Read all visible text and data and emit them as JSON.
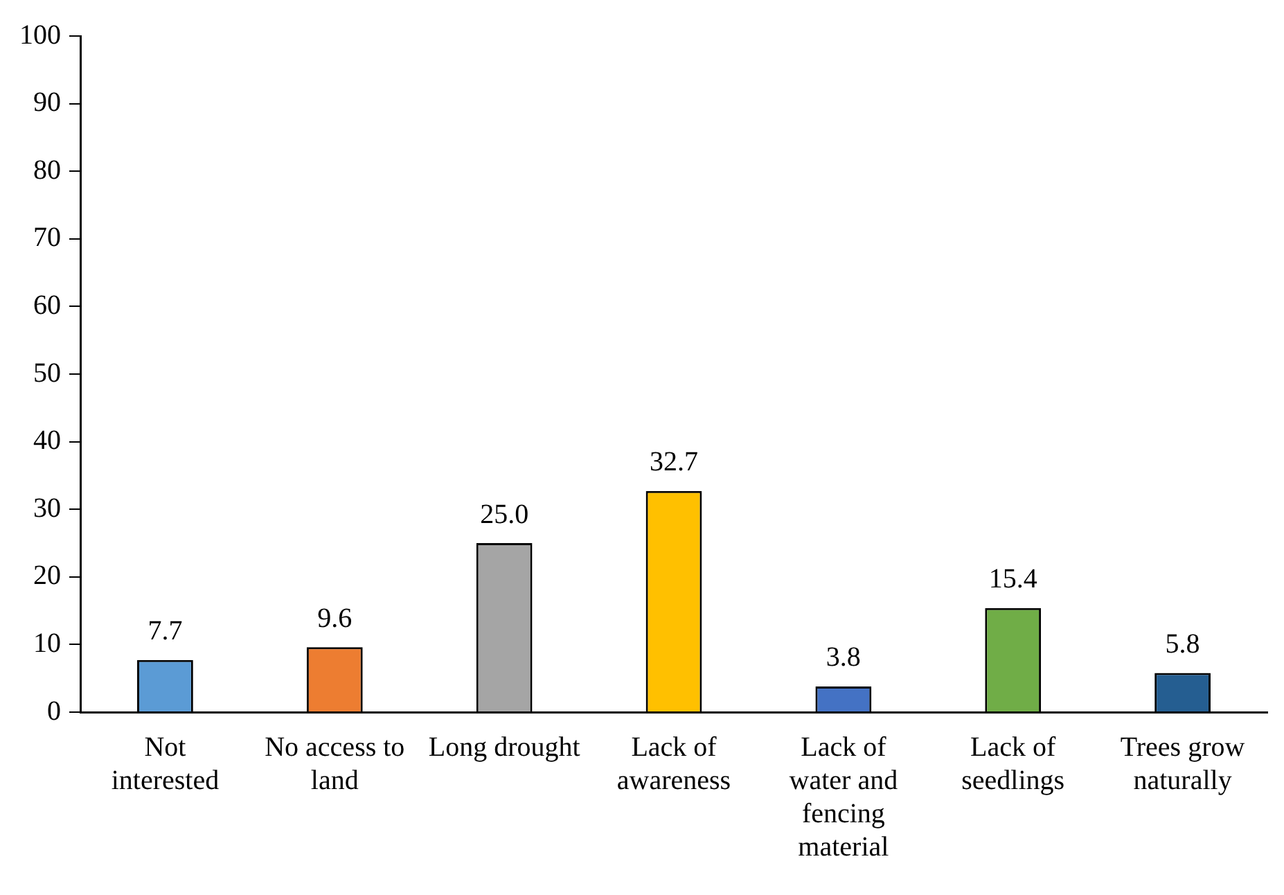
{
  "chart_data": {
    "type": "bar",
    "categories": [
      "Not interested",
      "No access to land",
      "Long drought",
      "Lack of awareness",
      "Lack of water and fencing material",
      "Lack of seedlings",
      "Trees grow naturally"
    ],
    "values": [
      7.7,
      9.6,
      25.0,
      32.7,
      3.8,
      15.4,
      5.8
    ],
    "colors": [
      "#5b9bd5",
      "#ed7d31",
      "#a5a5a5",
      "#ffc000",
      "#4472c4",
      "#70ad47",
      "#255e91"
    ],
    "value_labels": [
      "7.7",
      "9.6",
      "25.0",
      "32.7",
      "3.8",
      "15.4",
      "5.8"
    ],
    "ylim": [
      0,
      100
    ],
    "yticks": [
      0,
      10,
      20,
      30,
      40,
      50,
      60,
      70,
      80,
      90,
      100
    ],
    "grid": false,
    "legend": false
  }
}
